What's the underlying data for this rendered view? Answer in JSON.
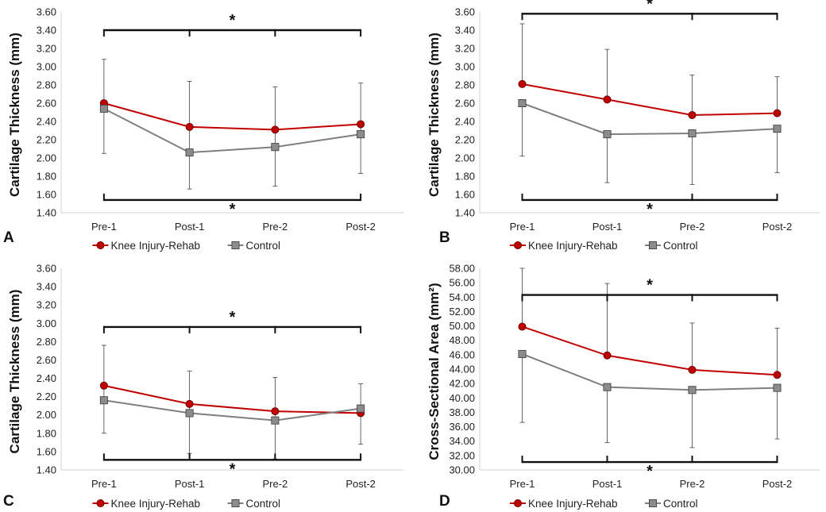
{
  "colors": {
    "series1": "#c00000",
    "series2": "#7f7f7f",
    "marker2": "#8c8c8c",
    "errorbar": "#404040",
    "bracket": "#111111"
  },
  "chart_data": [
    {
      "panel": "A",
      "type": "line",
      "ylabel": "Cartilage Thickness (mm)",
      "ylim": [
        1.4,
        3.6
      ],
      "ystep": 0.2,
      "decimals": 2,
      "categories": [
        "Pre-1",
        "Post-1",
        "Pre-2",
        "Post-2"
      ],
      "series": [
        {
          "name": "Knee Injury-Rehab",
          "values": [
            2.6,
            2.34,
            2.31,
            2.37
          ]
        },
        {
          "name": "Control",
          "values": [
            2.54,
            2.06,
            2.12,
            2.26
          ],
          "err_upper": [
            3.08,
            2.84,
            2.78,
            2.82
          ],
          "err_lower": [
            2.05,
            1.66,
            1.69,
            1.83
          ]
        }
      ],
      "significance": [
        {
          "label": "*",
          "level": 3.4,
          "ticks": [
            0,
            1,
            2,
            3
          ]
        },
        {
          "label": "*",
          "level": 1.54,
          "ticks": [
            0,
            3
          ],
          "below": true
        }
      ]
    },
    {
      "panel": "B",
      "type": "line",
      "ylabel": "Cartilage Thickness (mm)",
      "ylim": [
        1.4,
        3.6
      ],
      "ystep": 0.2,
      "decimals": 2,
      "categories": [
        "Pre-1",
        "Post-1",
        "Pre-2",
        "Post-2"
      ],
      "series": [
        {
          "name": "Knee Injury-Rehab",
          "values": [
            2.81,
            2.64,
            2.47,
            2.49
          ],
          "err_upper": [
            3.47,
            3.19,
            2.91,
            2.89
          ]
        },
        {
          "name": "Control",
          "values": [
            2.6,
            2.26,
            2.27,
            2.32
          ],
          "err_lower": [
            2.02,
            1.73,
            1.71,
            1.84
          ]
        }
      ],
      "significance": [
        {
          "label": "*",
          "level": 3.58,
          "ticks": [
            0,
            2,
            3
          ]
        },
        {
          "label": "*",
          "level": 1.54,
          "ticks": [
            0,
            2,
            3
          ],
          "below": true
        }
      ]
    },
    {
      "panel": "C",
      "type": "line",
      "ylabel": "Cartilage Thickness (mm)",
      "ylim": [
        1.4,
        3.6
      ],
      "ystep": 0.2,
      "decimals": 2,
      "categories": [
        "Pre-1",
        "Post-1",
        "Pre-2",
        "Post-2"
      ],
      "series": [
        {
          "name": "Knee Injury-Rehab",
          "values": [
            2.32,
            2.12,
            2.04,
            2.02
          ]
        },
        {
          "name": "Control",
          "values": [
            2.16,
            2.02,
            1.94,
            2.07
          ],
          "err_upper": [
            2.76,
            2.48,
            2.41,
            2.34
          ],
          "err_lower": [
            1.8,
            1.58,
            1.52,
            1.68
          ]
        }
      ],
      "significance": [
        {
          "label": "*",
          "level": 2.96,
          "ticks": [
            0,
            1,
            2,
            3
          ]
        },
        {
          "label": "*",
          "level": 1.51,
          "ticks": [
            0,
            1,
            2,
            3
          ],
          "below": true
        }
      ]
    },
    {
      "panel": "D",
      "type": "line",
      "ylabel": "Cross-Sectional Area (mm²)",
      "ylim": [
        30.0,
        58.0
      ],
      "ystep": 2.0,
      "decimals": 2,
      "categories": [
        "Pre-1",
        "Post-1",
        "Pre-2",
        "Post-2"
      ],
      "series": [
        {
          "name": "Knee Injury-Rehab",
          "values": [
            49.9,
            45.9,
            43.9,
            43.2
          ],
          "err_upper": [
            58.0,
            55.9,
            50.4,
            49.7
          ]
        },
        {
          "name": "Control",
          "values": [
            46.1,
            41.5,
            41.1,
            41.4
          ],
          "err_lower": [
            36.6,
            33.8,
            33.1,
            34.3
          ]
        }
      ],
      "significance": [
        {
          "label": "*",
          "level": 54.3,
          "ticks": [
            0,
            1,
            2,
            3
          ]
        },
        {
          "label": "*",
          "level": 31.1,
          "ticks": [
            0,
            1,
            2,
            3
          ],
          "below": true
        }
      ]
    }
  ]
}
